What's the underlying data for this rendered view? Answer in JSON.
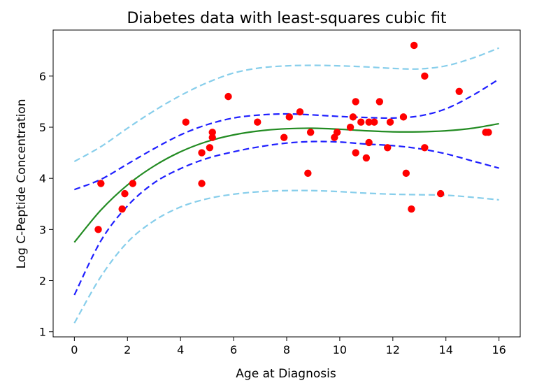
{
  "chart_data": {
    "type": "scatter",
    "title": "Diabetes data with least-squares cubic fit",
    "xlabel": "Age at Diagnosis",
    "ylabel": "Log C-Peptide Concentration",
    "xlim": [
      -0.8,
      16.8
    ],
    "ylim": [
      0.9,
      6.9
    ],
    "xticks": [
      0,
      2,
      4,
      6,
      8,
      10,
      12,
      14,
      16
    ],
    "yticks": [
      1,
      2,
      3,
      4,
      5,
      6
    ],
    "grid": false,
    "legend": "none",
    "colors": {
      "points": "#ff0000",
      "fit": "#228b22",
      "confidence_band": "#1f1fff",
      "prediction_band": "#87ceeb"
    },
    "series": [
      {
        "kind": "scatter",
        "x": [
          0.9,
          1.0,
          1.8,
          1.9,
          2.2,
          4.2,
          4.8,
          4.8,
          5.1,
          5.2,
          5.2,
          5.8,
          6.9,
          7.9,
          8.1,
          8.5,
          8.8,
          8.9,
          9.8,
          9.9,
          10.4,
          10.5,
          10.6,
          10.6,
          10.8,
          11.0,
          11.1,
          11.1,
          11.3,
          11.5,
          11.8,
          11.9,
          12.4,
          12.5,
          12.7,
          12.8,
          13.2,
          13.2,
          13.8,
          14.5,
          15.5,
          15.6
        ],
        "y": [
          3.0,
          3.9,
          3.4,
          3.7,
          3.9,
          5.1,
          3.9,
          4.5,
          4.6,
          4.8,
          4.9,
          5.6,
          5.1,
          4.8,
          5.2,
          5.3,
          4.1,
          4.9,
          4.8,
          4.9,
          5.0,
          5.2,
          5.5,
          4.5,
          5.1,
          4.4,
          4.7,
          5.1,
          5.1,
          5.5,
          4.6,
          5.1,
          5.2,
          4.1,
          3.4,
          6.6,
          6.0,
          4.6,
          3.7,
          5.7,
          4.9,
          4.9
        ]
      },
      {
        "kind": "fit",
        "style": "solid",
        "x": [
          0,
          1,
          2,
          3,
          4,
          5,
          6,
          7,
          8,
          9,
          10,
          11,
          12,
          13,
          14,
          15,
          16
        ],
        "y": [
          2.75,
          3.38,
          3.87,
          4.24,
          4.52,
          4.72,
          4.85,
          4.93,
          4.97,
          4.98,
          4.96,
          4.93,
          4.91,
          4.91,
          4.93,
          4.98,
          5.07
        ]
      },
      {
        "kind": "confidence_upper",
        "style": "dashed",
        "x": [
          0,
          1,
          2,
          3,
          4,
          5,
          6,
          7,
          8,
          9,
          10,
          11,
          12,
          13,
          14,
          15,
          16
        ],
        "y": [
          3.78,
          3.98,
          4.28,
          4.58,
          4.85,
          5.05,
          5.18,
          5.24,
          5.26,
          5.24,
          5.21,
          5.19,
          5.18,
          5.22,
          5.36,
          5.62,
          5.94
        ]
      },
      {
        "kind": "confidence_lower",
        "style": "dashed",
        "x": [
          0,
          1,
          2,
          3,
          4,
          5,
          6,
          7,
          8,
          9,
          10,
          11,
          12,
          13,
          14,
          15,
          16
        ],
        "y": [
          1.72,
          2.78,
          3.46,
          3.91,
          4.19,
          4.39,
          4.52,
          4.62,
          4.69,
          4.72,
          4.71,
          4.67,
          4.64,
          4.58,
          4.48,
          4.34,
          4.2
        ]
      },
      {
        "kind": "prediction_upper",
        "style": "dashed",
        "x": [
          0,
          1,
          2,
          3,
          4,
          5,
          6,
          7,
          8,
          9,
          10,
          11,
          12,
          13,
          14,
          15,
          16
        ],
        "y": [
          4.33,
          4.62,
          4.98,
          5.32,
          5.62,
          5.87,
          6.06,
          6.16,
          6.2,
          6.21,
          6.2,
          6.18,
          6.15,
          6.14,
          6.2,
          6.35,
          6.55
        ]
      },
      {
        "kind": "prediction_lower",
        "style": "dashed",
        "x": [
          0,
          1,
          2,
          3,
          4,
          5,
          6,
          7,
          8,
          9,
          10,
          11,
          12,
          13,
          14,
          15,
          16
        ],
        "y": [
          1.17,
          2.08,
          2.75,
          3.17,
          3.44,
          3.6,
          3.69,
          3.74,
          3.76,
          3.76,
          3.74,
          3.71,
          3.69,
          3.68,
          3.67,
          3.63,
          3.58
        ]
      }
    ]
  }
}
